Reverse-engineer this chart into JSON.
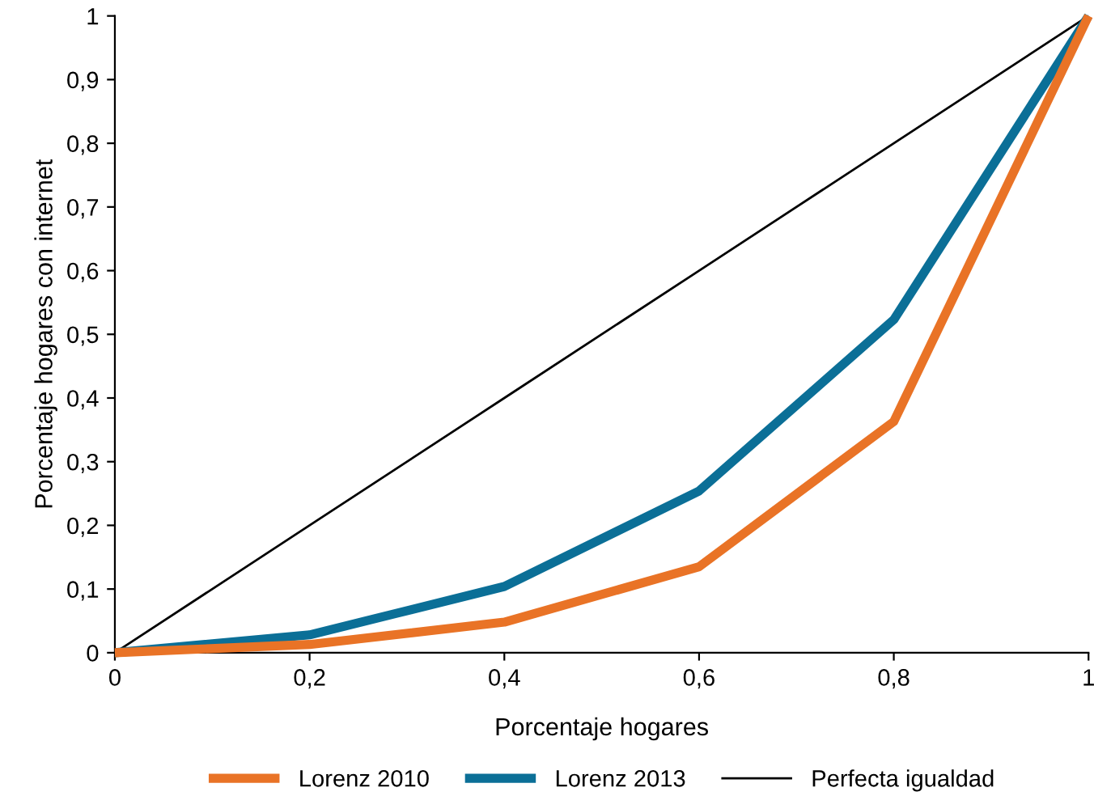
{
  "chart_data": {
    "type": "line",
    "xlabel": "Porcentaje hogares",
    "ylabel": "Porcentaje hogares con internet",
    "x": [
      0,
      0.2,
      0.4,
      0.6,
      0.8,
      1
    ],
    "series": [
      {
        "name": "Lorenz 2010",
        "color": "#e97326",
        "values": [
          0,
          0.013,
          0.048,
          0.135,
          0.363,
          1
        ]
      },
      {
        "name": "Lorenz 2013",
        "color": "#0b6f97",
        "values": [
          0,
          0.028,
          0.104,
          0.254,
          0.523,
          1
        ]
      },
      {
        "name": "Perfecta igualdad",
        "color": "#000000",
        "values": [
          0,
          0.2,
          0.4,
          0.6,
          0.8,
          1
        ]
      }
    ],
    "xlim": [
      0,
      1
    ],
    "ylim": [
      0,
      1
    ],
    "xticks": [
      0,
      {
        "value": 0.2,
        "label": "0,2"
      },
      {
        "value": 0.4,
        "label": "0,4"
      },
      {
        "value": 0.6,
        "label": "0,6"
      },
      {
        "value": 0.8,
        "label": "0,8"
      },
      1
    ],
    "yticks": [
      0,
      {
        "value": 0.1,
        "label": "0,1"
      },
      {
        "value": 0.2,
        "label": "0,2"
      },
      {
        "value": 0.3,
        "label": "0,3"
      },
      {
        "value": 0.4,
        "label": "0,4"
      },
      {
        "value": 0.5,
        "label": "0,5"
      },
      {
        "value": 0.6,
        "label": "0,6"
      },
      {
        "value": 0.7,
        "label": "0,7"
      },
      {
        "value": 0.8,
        "label": "0,8"
      },
      {
        "value": 0.9,
        "label": "0,9"
      },
      1
    ],
    "grid": false,
    "legend": "bottom"
  }
}
